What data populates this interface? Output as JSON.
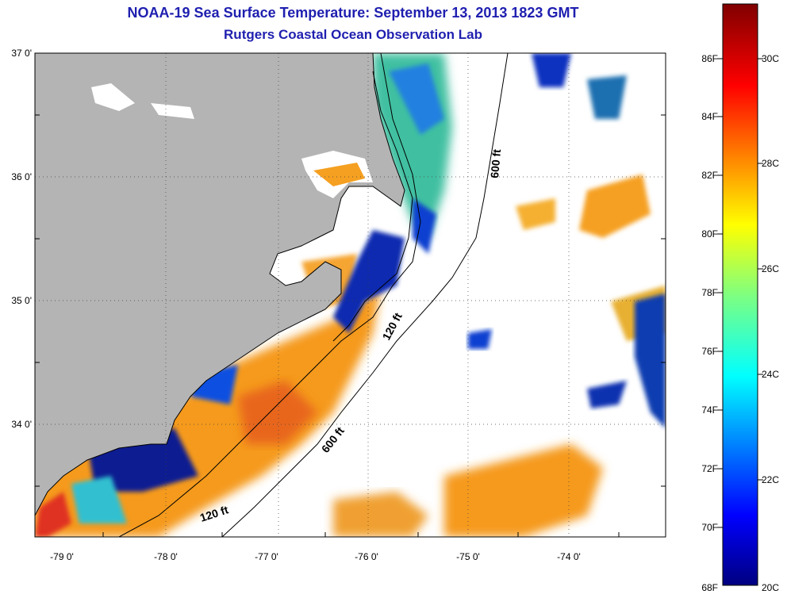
{
  "header": {
    "title": "NOAA-19 Sea Surface Temperature:  September 13, 2013 1823 GMT",
    "subtitle": "Rutgers Coastal Ocean Observation Lab"
  },
  "map": {
    "lat_labels": [
      "37 0'",
      "36 0'",
      "35 0'",
      "34 0'"
    ],
    "lon_labels": [
      "-79 0'",
      "-78 0'",
      "-77 0'",
      "-76 0'",
      "-75 0'",
      "-74 0'"
    ],
    "depth_labels": [
      "600 ft",
      "120 ft",
      "600 ft",
      "120 ft"
    ],
    "colors": {
      "land": "#b4b4b4",
      "ocean_no_data": "#ffffff",
      "coast": "#000000"
    }
  },
  "colorbar": {
    "fahrenheit_labels": [
      "86F",
      "84F",
      "82F",
      "80F",
      "78F",
      "76F",
      "74F",
      "72F",
      "70F",
      "68F"
    ],
    "celsius_labels": [
      "30C",
      "28C",
      "26C",
      "24C",
      "22C",
      "20C"
    ],
    "range_c": [
      20,
      31
    ],
    "colormap": "jet"
  }
}
